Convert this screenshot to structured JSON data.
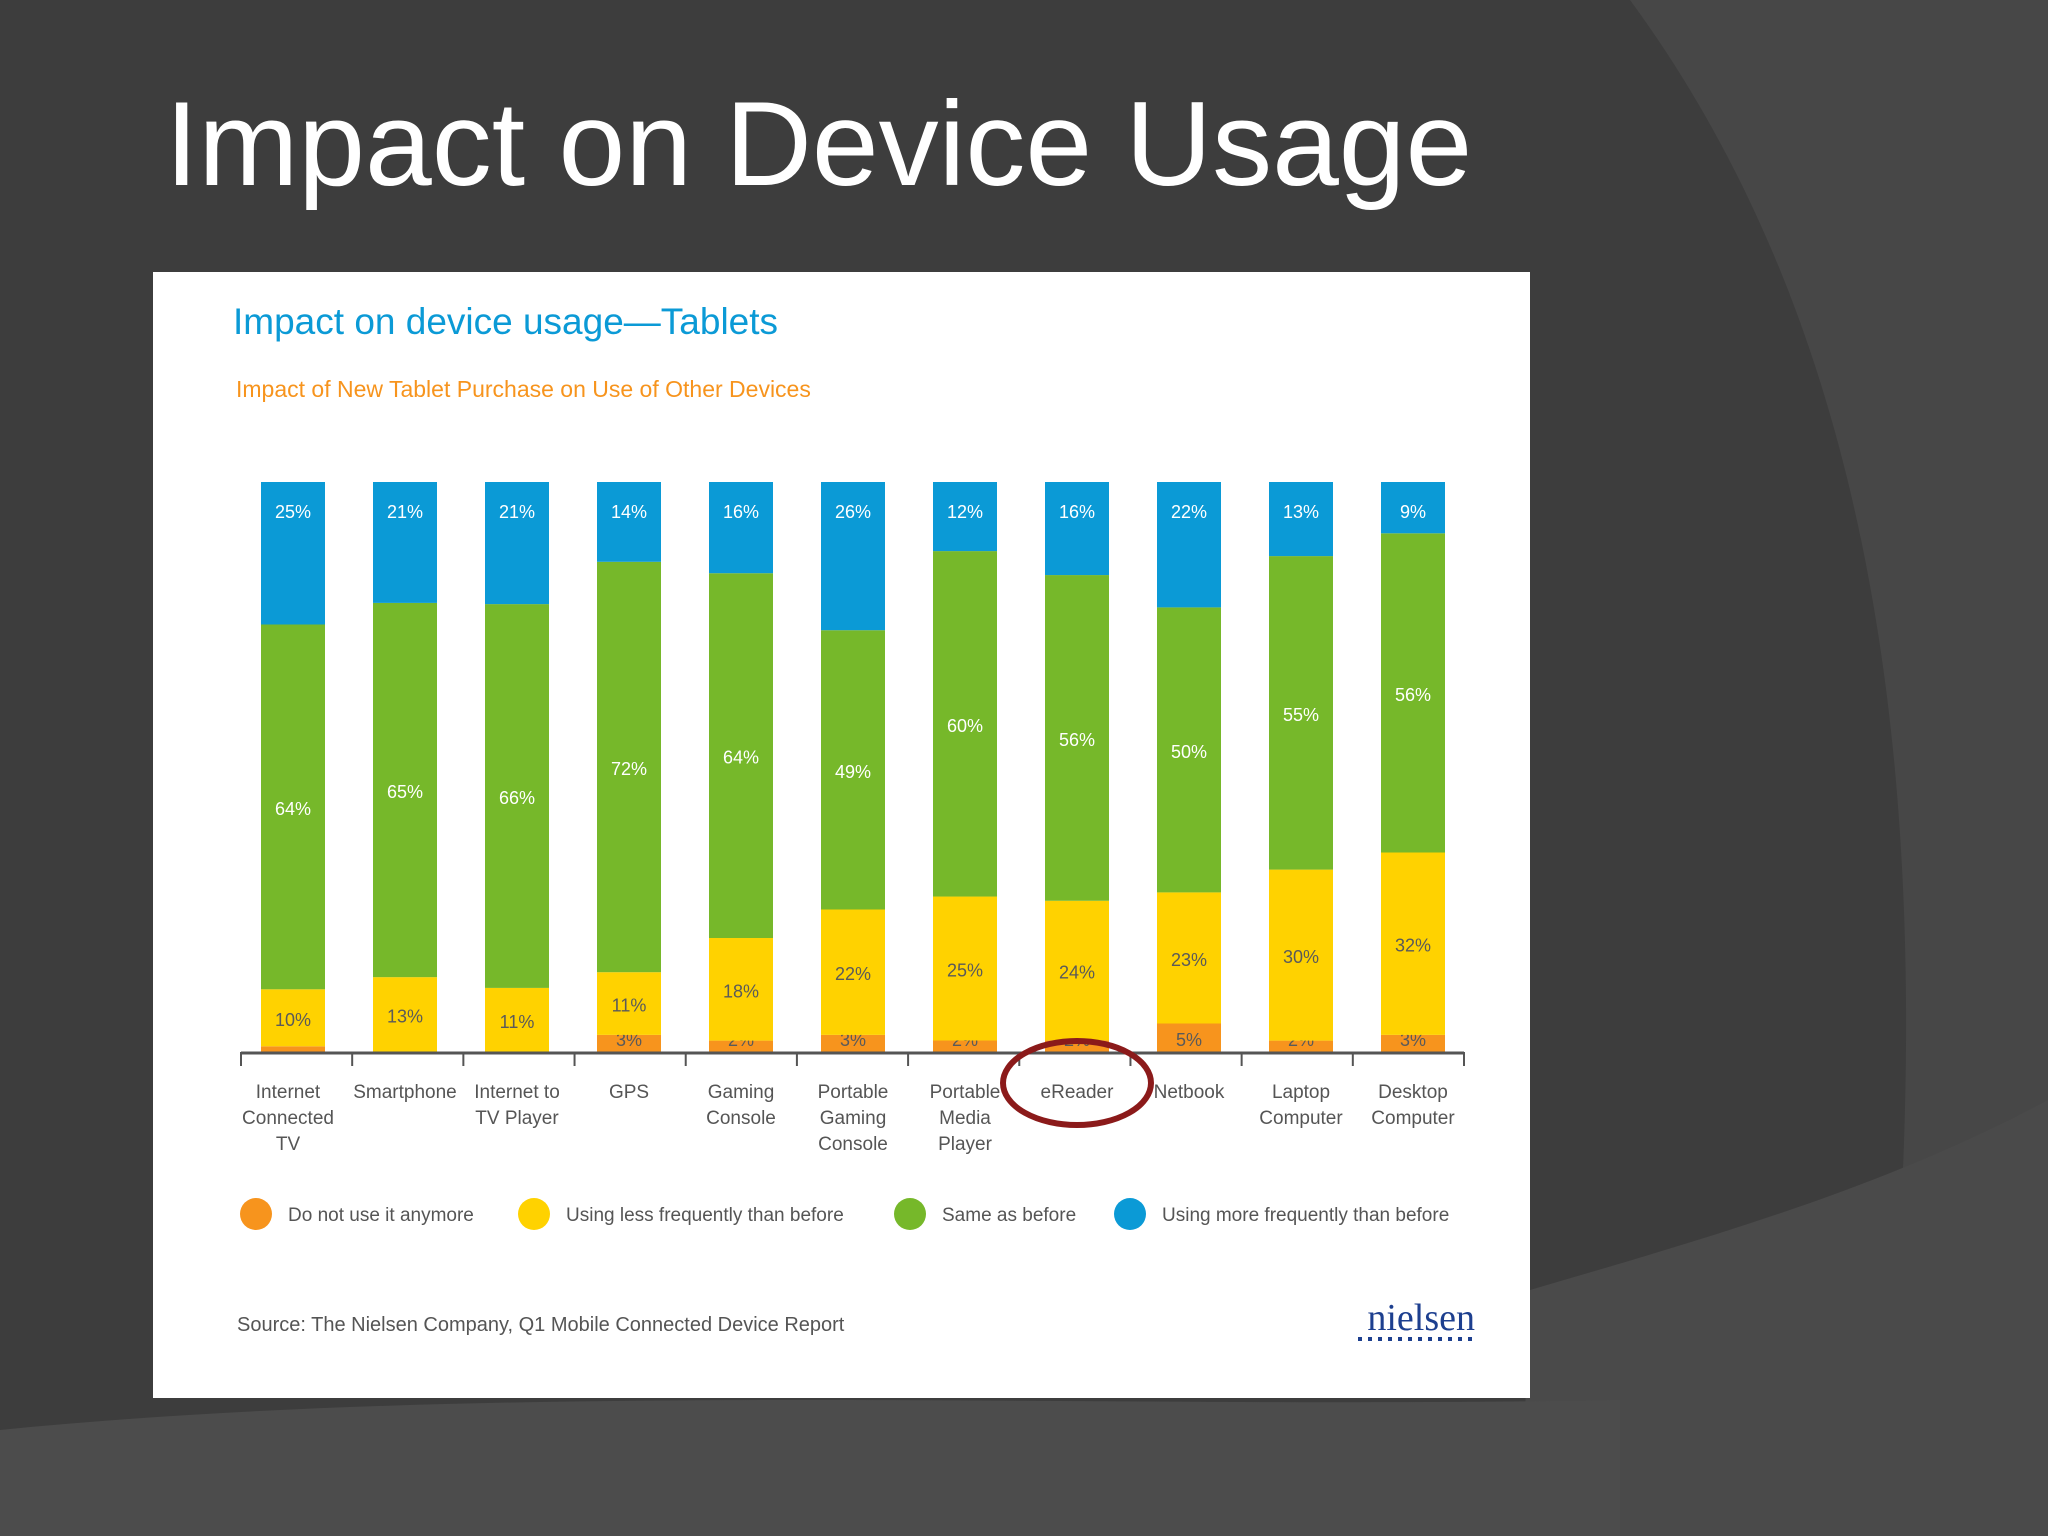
{
  "slide": {
    "title": "Impact on Device Usage"
  },
  "chart_data": {
    "type": "bar",
    "stacked": true,
    "title": "Impact on device usage—Tablets",
    "subtitle": "Impact of New Tablet Purchase on Use of Other Devices",
    "categories": [
      [
        "Internet",
        "Connected",
        "TV"
      ],
      [
        "Smartphone"
      ],
      [
        "Internet to",
        "TV Player"
      ],
      [
        "GPS"
      ],
      [
        "Gaming",
        "Console"
      ],
      [
        "Portable",
        "Gaming",
        "Console"
      ],
      [
        "Portable",
        "Media",
        "Player"
      ],
      [
        "eReader"
      ],
      [
        "Netbook"
      ],
      [
        "Laptop",
        "Computer"
      ],
      [
        "Desktop",
        "Computer"
      ]
    ],
    "series": [
      {
        "name": "Do not use it anymore",
        "color": "#f7941d",
        "values": [
          1,
          0,
          0.02,
          3,
          2,
          3,
          2,
          2,
          5,
          2,
          3
        ],
        "labels": [
          "1%",
          "",
          "0.02%",
          "3%",
          "2%",
          "3%",
          "2%",
          "2%",
          "5%",
          "2%",
          "3%"
        ]
      },
      {
        "name": "Using less frequently than before",
        "color": "#ffd200",
        "values": [
          10,
          13,
          11,
          11,
          18,
          22,
          25,
          24,
          23,
          30,
          32
        ],
        "labels": [
          "10%",
          "13%",
          "11%",
          "11%",
          "18%",
          "22%",
          "25%",
          "24%",
          "23%",
          "30%",
          "32%"
        ]
      },
      {
        "name": "Same as before",
        "color": "#76b82a",
        "values": [
          64,
          65,
          66,
          72,
          64,
          49,
          60,
          56,
          50,
          55,
          56
        ],
        "labels": [
          "64%",
          "65%",
          "66%",
          "72%",
          "64%",
          "49%",
          "60%",
          "56%",
          "50%",
          "55%",
          "56%"
        ]
      },
      {
        "name": "Using more frequently than before",
        "color": "#0b9ad6",
        "values": [
          25,
          21,
          21,
          14,
          16,
          26,
          12,
          16,
          22,
          13,
          9
        ],
        "labels": [
          "25%",
          "21%",
          "21%",
          "14%",
          "16%",
          "26%",
          "12%",
          "16%",
          "22%",
          "13%",
          "9%"
        ]
      }
    ],
    "ylim": [
      0,
      100
    ],
    "legend_position": "bottom",
    "highlighted_category": "eReader",
    "source": "Source: The Nielsen Company, Q1 Mobile Connected Device Report",
    "logo": "nielsen",
    "colors": {
      "title": "#0b9ad6",
      "subtitle": "#f7941d",
      "highlight_ring": "#8b1a1a",
      "axis": "#555555",
      "text": "#555555"
    }
  }
}
